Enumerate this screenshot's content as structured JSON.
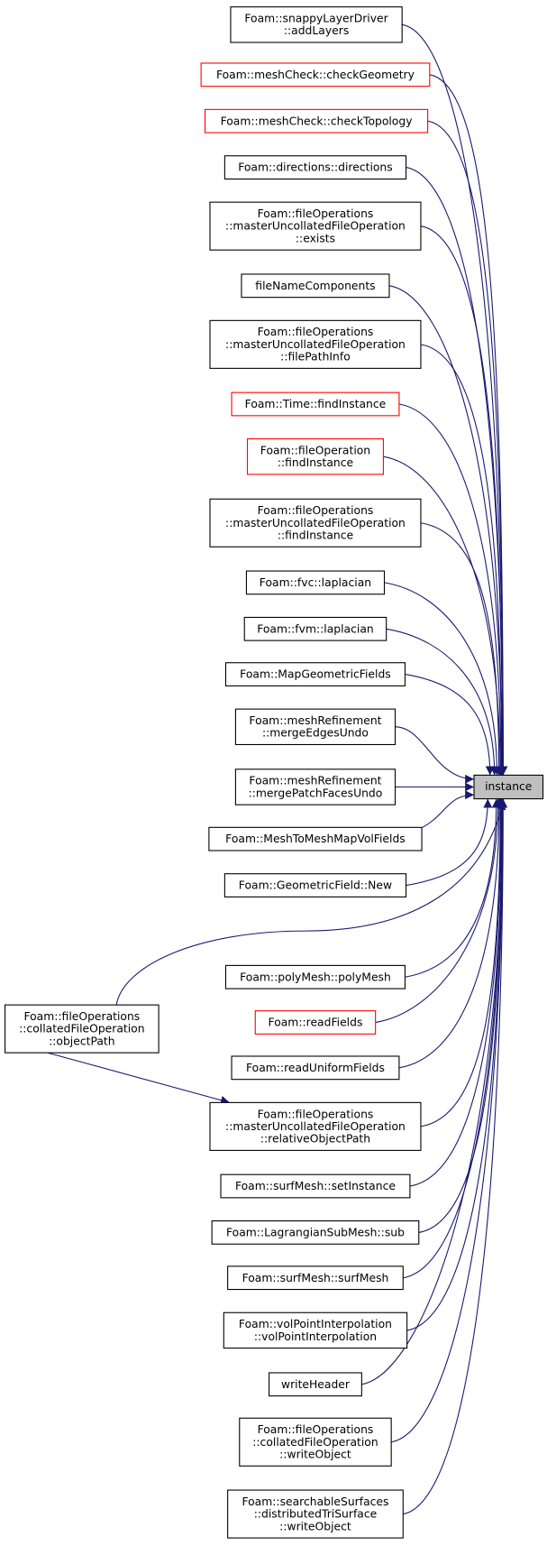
{
  "target": {
    "label": "instance"
  },
  "nodes": [
    {
      "lines": [
        "Foam::snappyLayerDriver",
        "::addLayers"
      ],
      "color": "black"
    },
    {
      "lines": [
        "Foam::meshCheck::checkGeometry"
      ],
      "color": "red"
    },
    {
      "lines": [
        "Foam::meshCheck::checkTopology"
      ],
      "color": "red"
    },
    {
      "lines": [
        "Foam::directions::directions"
      ],
      "color": "black"
    },
    {
      "lines": [
        "Foam::fileOperations",
        "::masterUncollatedFileOperation",
        "::exists"
      ],
      "color": "black"
    },
    {
      "lines": [
        "fileNameComponents"
      ],
      "color": "black"
    },
    {
      "lines": [
        "Foam::fileOperations",
        "::masterUncollatedFileOperation",
        "::filePathInfo"
      ],
      "color": "black"
    },
    {
      "lines": [
        "Foam::Time::findInstance"
      ],
      "color": "red"
    },
    {
      "lines": [
        "Foam::fileOperation",
        "::findInstance"
      ],
      "color": "red"
    },
    {
      "lines": [
        "Foam::fileOperations",
        "::masterUncollatedFileOperation",
        "::findInstance"
      ],
      "color": "black"
    },
    {
      "lines": [
        "Foam::fvc::laplacian"
      ],
      "color": "black"
    },
    {
      "lines": [
        "Foam::fvm::laplacian"
      ],
      "color": "black"
    },
    {
      "lines": [
        "Foam::MapGeometricFields"
      ],
      "color": "black"
    },
    {
      "lines": [
        "Foam::meshRefinement",
        "::mergeEdgesUndo"
      ],
      "color": "black"
    },
    {
      "lines": [
        "Foam::meshRefinement",
        "::mergePatchFacesUndo"
      ],
      "color": "black"
    },
    {
      "lines": [
        "Foam::MeshToMeshMapVolFields"
      ],
      "color": "black"
    },
    {
      "lines": [
        "Foam::GeometricField::New"
      ],
      "color": "black"
    },
    {
      "lines": [
        "Foam::fileOperations",
        "::collatedFileOperation",
        "::objectPath"
      ],
      "color": "black"
    },
    {
      "lines": [
        "Foam::polyMesh::polyMesh"
      ],
      "color": "black"
    },
    {
      "lines": [
        "Foam::readFields"
      ],
      "color": "red"
    },
    {
      "lines": [
        "Foam::readUniformFields"
      ],
      "color": "black"
    },
    {
      "lines": [
        "Foam::fileOperations",
        "::masterUncollatedFileOperation",
        "::relativeObjectPath"
      ],
      "color": "black"
    },
    {
      "lines": [
        "Foam::surfMesh::setInstance"
      ],
      "color": "black"
    },
    {
      "lines": [
        "Foam::LagrangianSubMesh::sub"
      ],
      "color": "black"
    },
    {
      "lines": [
        "Foam::surfMesh::surfMesh"
      ],
      "color": "black"
    },
    {
      "lines": [
        "Foam::volPointInterpolation",
        "::volPointInterpolation"
      ],
      "color": "black"
    },
    {
      "lines": [
        "writeHeader"
      ],
      "color": "black"
    },
    {
      "lines": [
        "Foam::fileOperations",
        "::collatedFileOperation",
        "::writeObject"
      ],
      "color": "black"
    },
    {
      "lines": [
        "Foam::searchableSurfaces",
        "::distributedTriSurface",
        "::writeObject"
      ],
      "color": "black"
    }
  ]
}
